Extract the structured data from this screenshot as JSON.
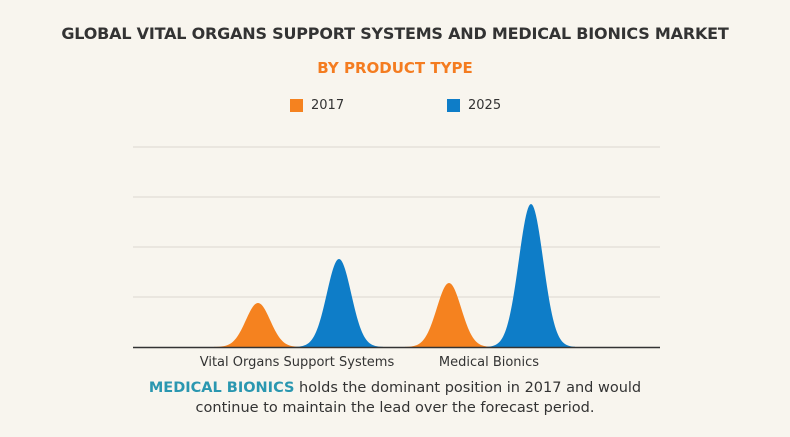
{
  "title": "GLOBAL VITAL ORGANS SUPPORT SYSTEMS AND MEDICAL BIONICS MARKET",
  "subtitle": "BY PRODUCT TYPE",
  "footer": {
    "highlight": "MEDICAL BIONICS",
    "line1": " holds the dominant position in 2017 and would",
    "line2": "continue to maintain the lead over the forecast period."
  },
  "colors": {
    "2017": "#f5821f",
    "2025": "#0e7dc8",
    "highlight": "#2a97b0",
    "background": "#f8f5ee"
  },
  "chart_data": {
    "type": "area",
    "title": "GLOBAL VITAL ORGANS SUPPORT SYSTEMS AND MEDICAL BIONICS MARKET",
    "subtitle": "BY PRODUCT TYPE",
    "categories": [
      "Vital Organs Support Systems",
      "Medical Bionics"
    ],
    "series": [
      {
        "name": "2017",
        "color": "#f5821f",
        "values": [
          0.88,
          1.28
        ]
      },
      {
        "name": "2025",
        "color": "#0e7dc8",
        "values": [
          1.76,
          2.86
        ]
      }
    ],
    "ylim": [
      0,
      4
    ],
    "grid": true,
    "y_tick_labels": false,
    "legend": "top-center"
  }
}
